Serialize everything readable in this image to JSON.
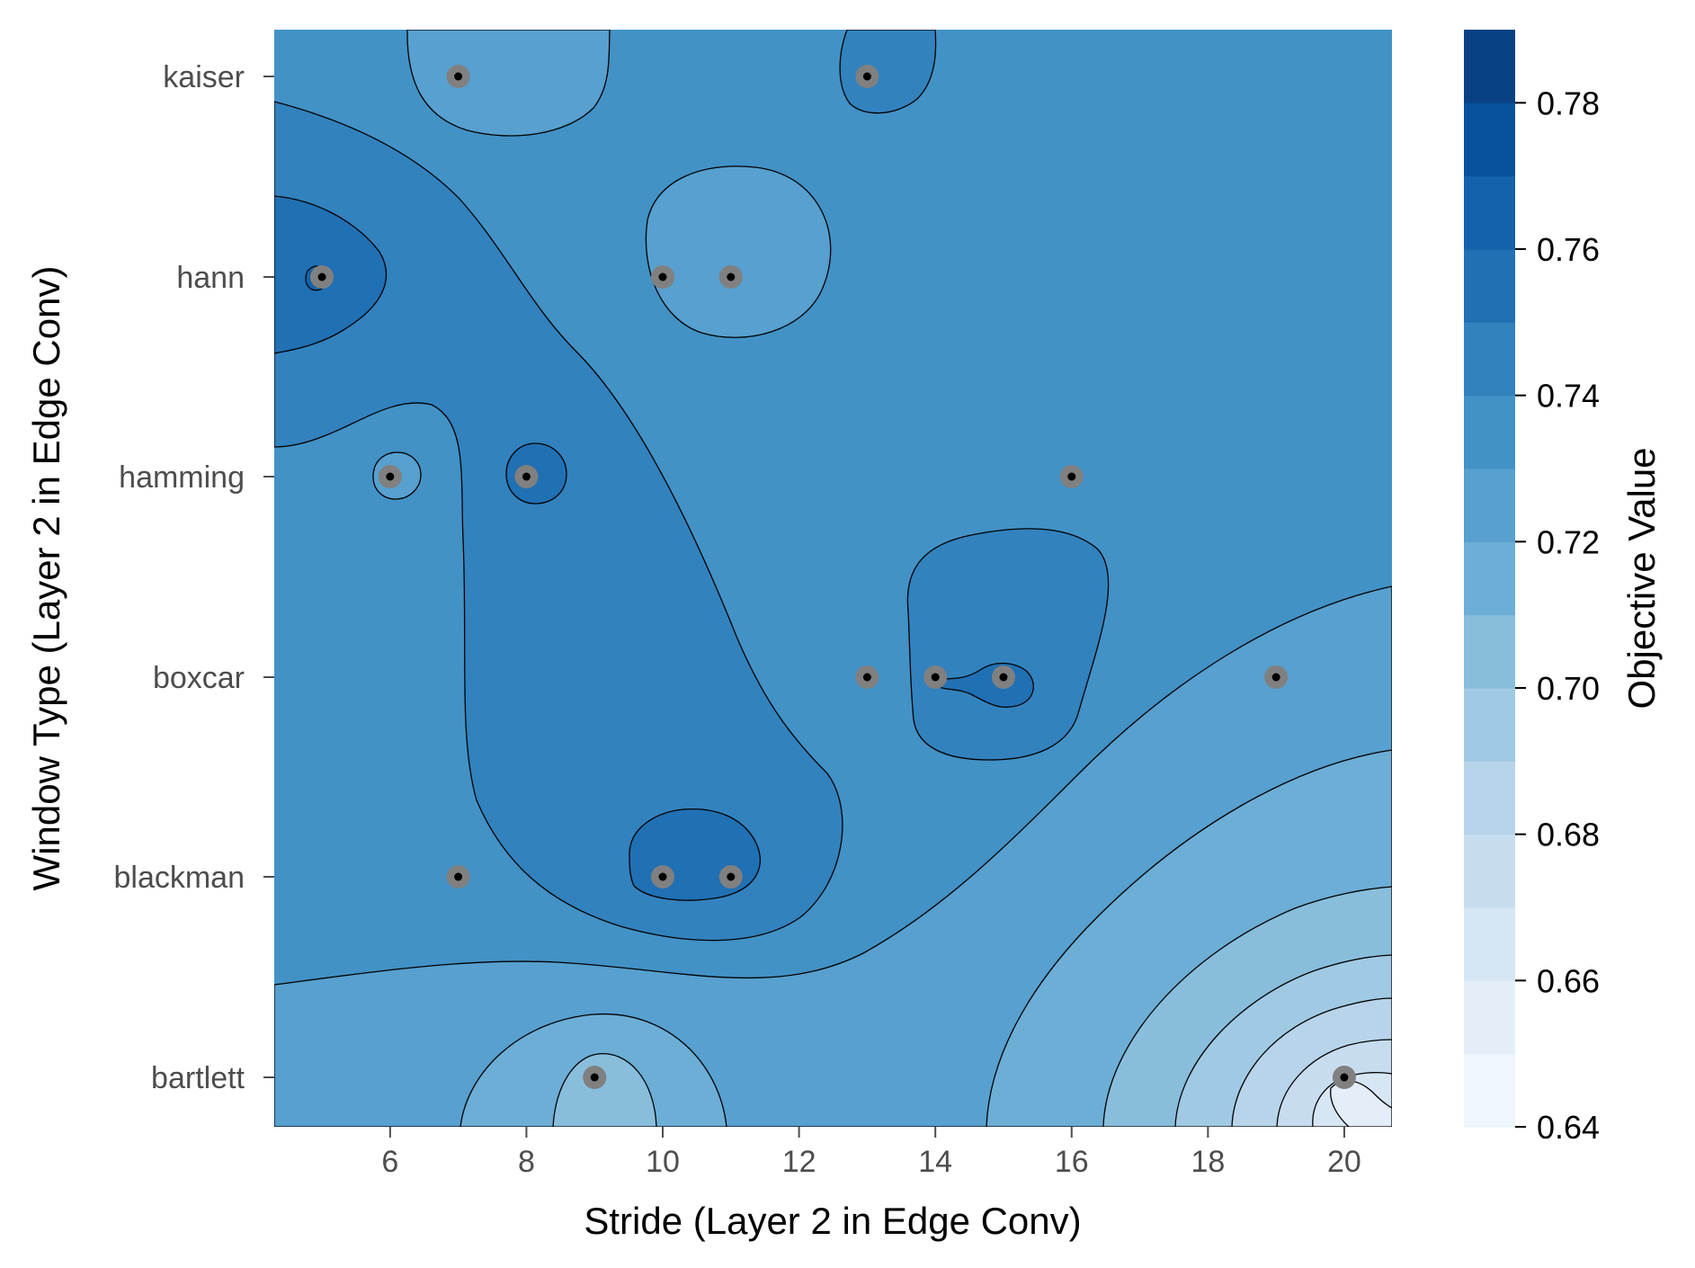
{
  "chart_data": {
    "type": "contour",
    "xlabel": "Stride (Layer 2 in Edge Conv)",
    "ylabel": "Window Type (Layer 2 in Edge Conv)",
    "colorbar_label": "Objective Value",
    "xlim": [
      4.3,
      20.7
    ],
    "x_ticks": [
      6,
      8,
      10,
      12,
      14,
      16,
      18,
      20
    ],
    "y_categories": [
      "bartlett",
      "blackman",
      "boxcar",
      "hamming",
      "hann",
      "kaiser"
    ],
    "colorbar": {
      "min": 0.64,
      "max": 0.79,
      "levels": [
        0.64,
        0.65,
        0.66,
        0.67,
        0.68,
        0.69,
        0.7,
        0.71,
        0.72,
        0.73,
        0.74,
        0.75,
        0.76,
        0.77,
        0.78,
        0.79
      ],
      "tick_labels": [
        "0.64",
        "0.66",
        "0.68",
        "0.70",
        "0.72",
        "0.74",
        "0.76",
        "0.78"
      ],
      "colors": [
        "#f0f6fd",
        "#e3eef9",
        "#d6e6f4",
        "#c7dcef",
        "#b7d4ea",
        "#a0cae4",
        "#88bedc",
        "#6caed6",
        "#57a0cf",
        "#4292c6",
        "#3282be",
        "#2070b4",
        "#1362aa",
        "#08529b",
        "#084184"
      ]
    },
    "trials": [
      {
        "x": 7,
        "y": "kaiser"
      },
      {
        "x": 13,
        "y": "kaiser"
      },
      {
        "x": 5,
        "y": "hann"
      },
      {
        "x": 10,
        "y": "hann"
      },
      {
        "x": 11,
        "y": "hann"
      },
      {
        "x": 6,
        "y": "hamming"
      },
      {
        "x": 8,
        "y": "hamming"
      },
      {
        "x": 16,
        "y": "hamming"
      },
      {
        "x": 13,
        "y": "boxcar"
      },
      {
        "x": 14,
        "y": "boxcar"
      },
      {
        "x": 15,
        "y": "boxcar"
      },
      {
        "x": 19,
        "y": "boxcar"
      },
      {
        "x": 7,
        "y": "blackman"
      },
      {
        "x": 10,
        "y": "blackman"
      },
      {
        "x": 11,
        "y": "blackman"
      },
      {
        "x": 9,
        "y": "bartlett"
      },
      {
        "x": 20,
        "y": "bartlett"
      }
    ]
  }
}
